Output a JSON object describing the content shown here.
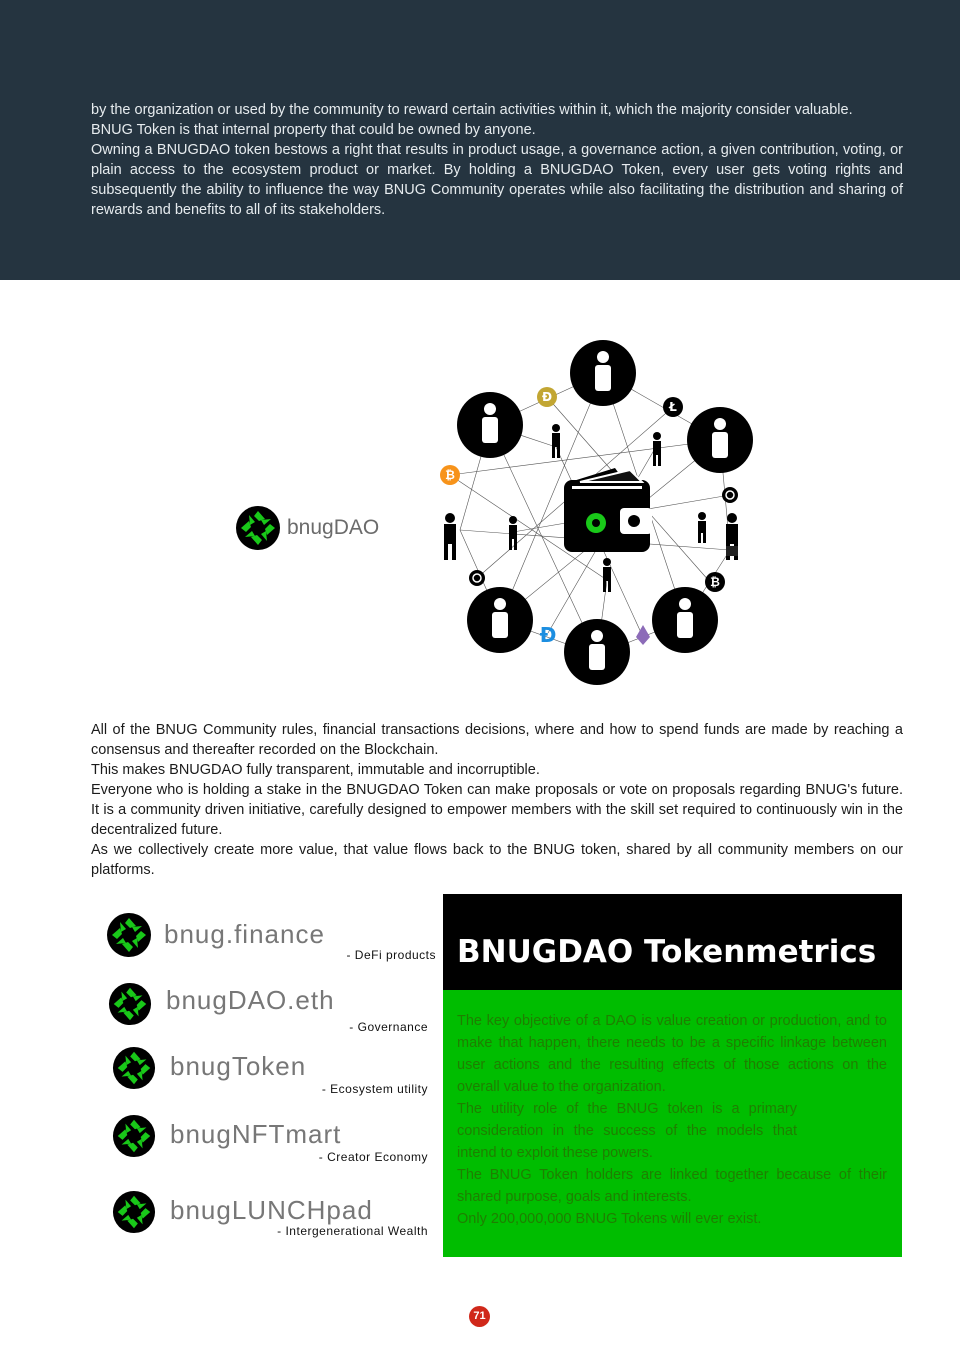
{
  "top": {
    "paragraphs": [
      "by the organization or used by the community to reward certain activities within it, which the majority consider valuable.",
      "BNUG Token is that internal property that could be owned by anyone.",
      "Owning a BNUGDAO token bestows a right that results in product usage, a governance action, a given contribution, voting, or plain access to the ecosystem product or market. By holding a BNUGDAO Token, every user gets voting rights and subsequently the ability to influence the way BNUG Community operates while also facilitating the distribution and sharing of rewards and benefits to all of its stakeholders."
    ]
  },
  "logo_label": "bnugDAO",
  "network_icons": {
    "center": "wallet-icon",
    "coins": [
      "dogecoin-icon",
      "litecoin-icon",
      "bitcoin-icon",
      "ripple-icon",
      "bitcoin-icon",
      "ripple-icon",
      "dash-icon",
      "ethereum-icon"
    ],
    "people": "person-icon"
  },
  "middle": {
    "paragraphs": [
      "All of the BNUG Community rules,  financial transactions decisions, where and how to spend funds are made by reaching a consensus and thereafter recorded on the Blockchain.",
      "This makes BNUGDAO fully transparent, immutable and incorruptible.",
      "Everyone who is holding a stake in the BNUGDAO Token can make proposals or vote on proposals regarding BNUG's future. It is a community driven initiative, carefully designed to empower members with the skill set required to continuously win in the decentralized future.",
      "As we collectively create more value, that value flows back to the BNUG token, shared by all community members on our platforms."
    ]
  },
  "brands": [
    {
      "title": "bnug.finance",
      "sub": "- DeFi products"
    },
    {
      "title": "bnugDAO.eth",
      "sub": "- Governance"
    },
    {
      "title": "bnugToken",
      "sub": "- Ecosystem utility"
    },
    {
      "title": "bnugNFTmart",
      "sub": "- Creator Economy"
    },
    {
      "title": "bnugLUNCHpad",
      "sub": "- Intergenerational Wealth"
    }
  ],
  "tokenmetrics": {
    "heading": "BNUGDAO Tokenmetrics",
    "paragraphs": [
      "The key objective of a DAO is value creation or production, and to make that happen, there needs to be a specific linkage between user actions and the resulting effects of those actions on the overall value to the organization.",
      "The utility role of the BNUG token is a primary consideration in the success of the models that intend to exploit these powers.",
      "The BNUG Token holders are linked together because of their shared purpose, goals and interests.",
      "Only 200,000,000 BNUG Tokens will ever exist."
    ]
  },
  "page_number": "71",
  "colors": {
    "dark_band": "#253440",
    "brand_green": "#00bd00",
    "logo_green": "#19a319",
    "page_badge": "#d0281a"
  }
}
